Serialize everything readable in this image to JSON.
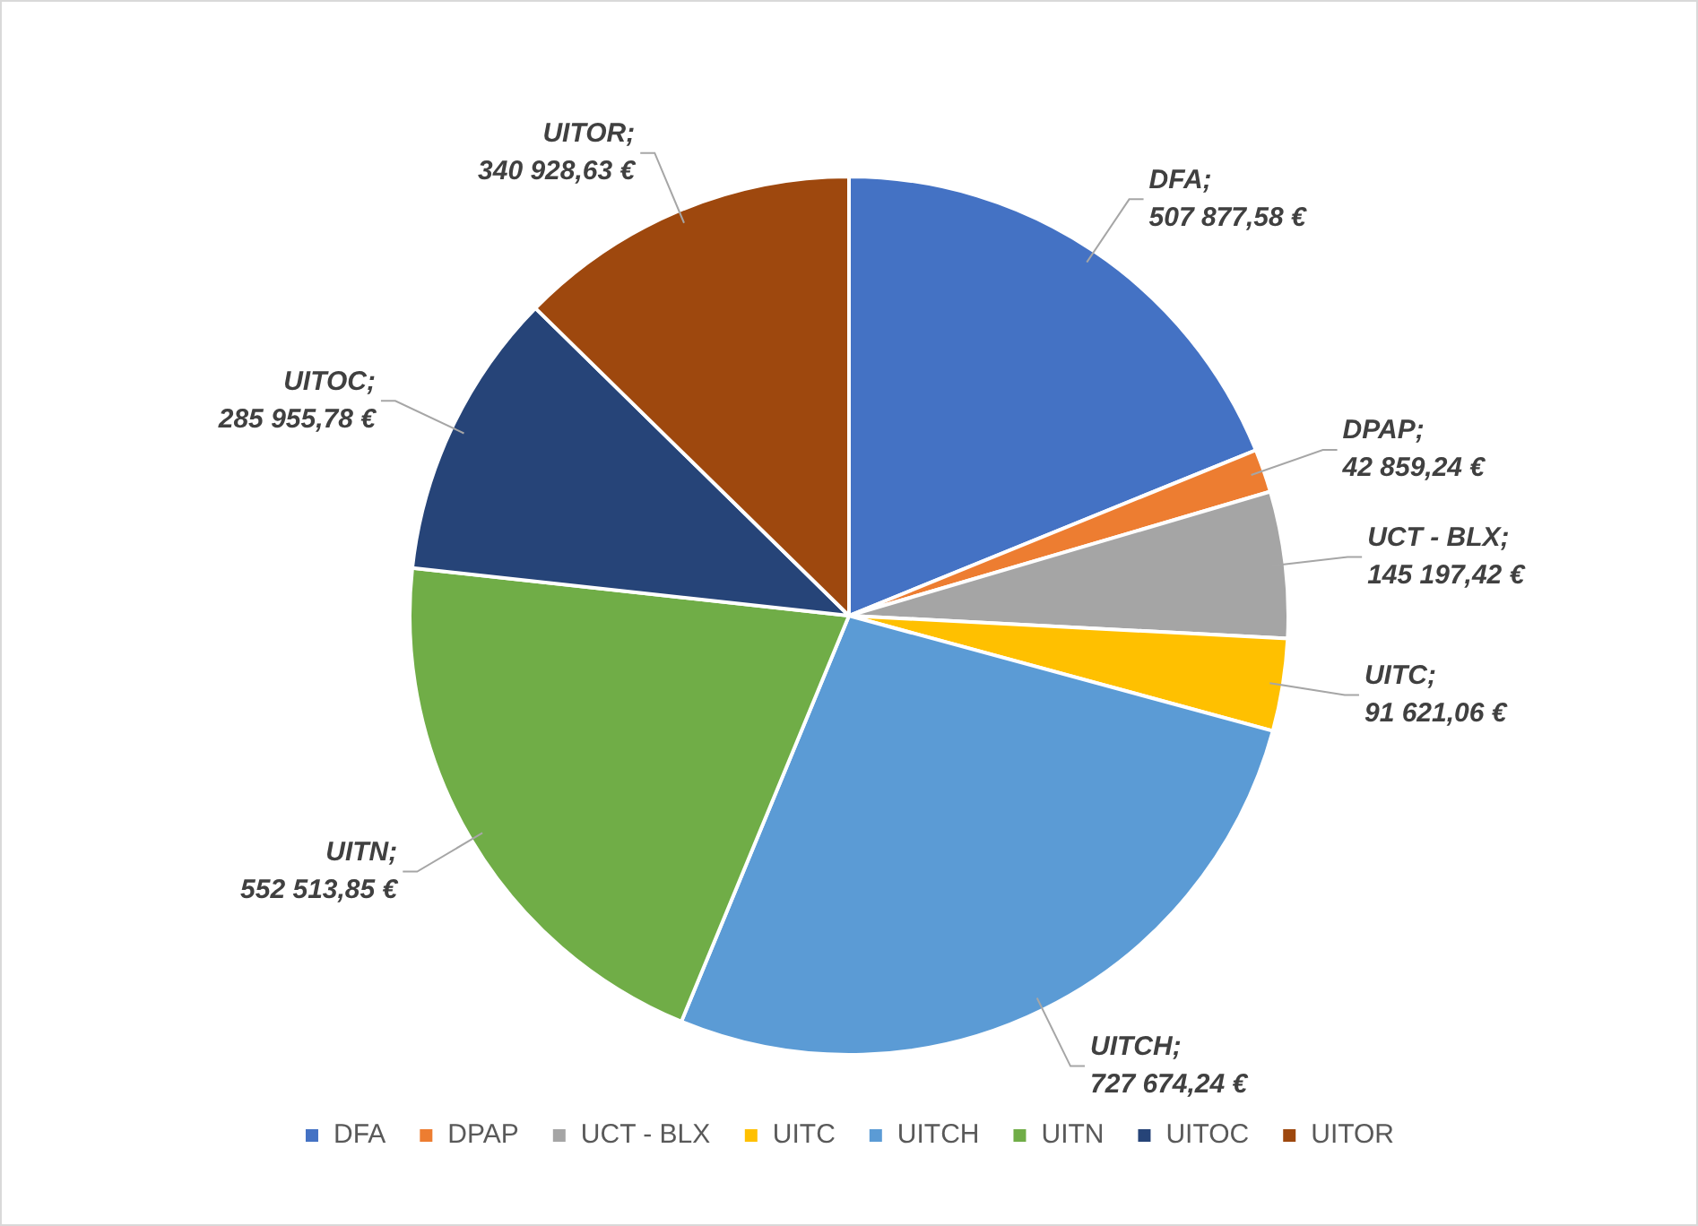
{
  "chart_data": {
    "type": "pie",
    "categories": [
      "DFA",
      "DPAP",
      "UCT - BLX",
      "UITC",
      "UITCH",
      "UITN",
      "UITOC",
      "UITOR"
    ],
    "values": [
      507877.58,
      42859.24,
      145197.42,
      91621.06,
      727674.24,
      552513.85,
      285955.78,
      340928.63
    ],
    "colors": [
      "#4472c4",
      "#ed7d31",
      "#a5a5a5",
      "#ffc000",
      "#5b9bd5",
      "#70ad47",
      "#264478",
      "#9e480e"
    ],
    "value_labels": [
      "DFA; 507 877,58 €",
      "DPAP; 42 859,24 €",
      "UCT - BLX; 145 197,42 €",
      "UITC; 91 621,06 €",
      "UITCH; 727 674,24 €",
      "UITN; 552 513,85 €",
      "UITOC; 285 955,78 €",
      "UITOR; 340 928,63 €"
    ],
    "legend": "bottom"
  }
}
